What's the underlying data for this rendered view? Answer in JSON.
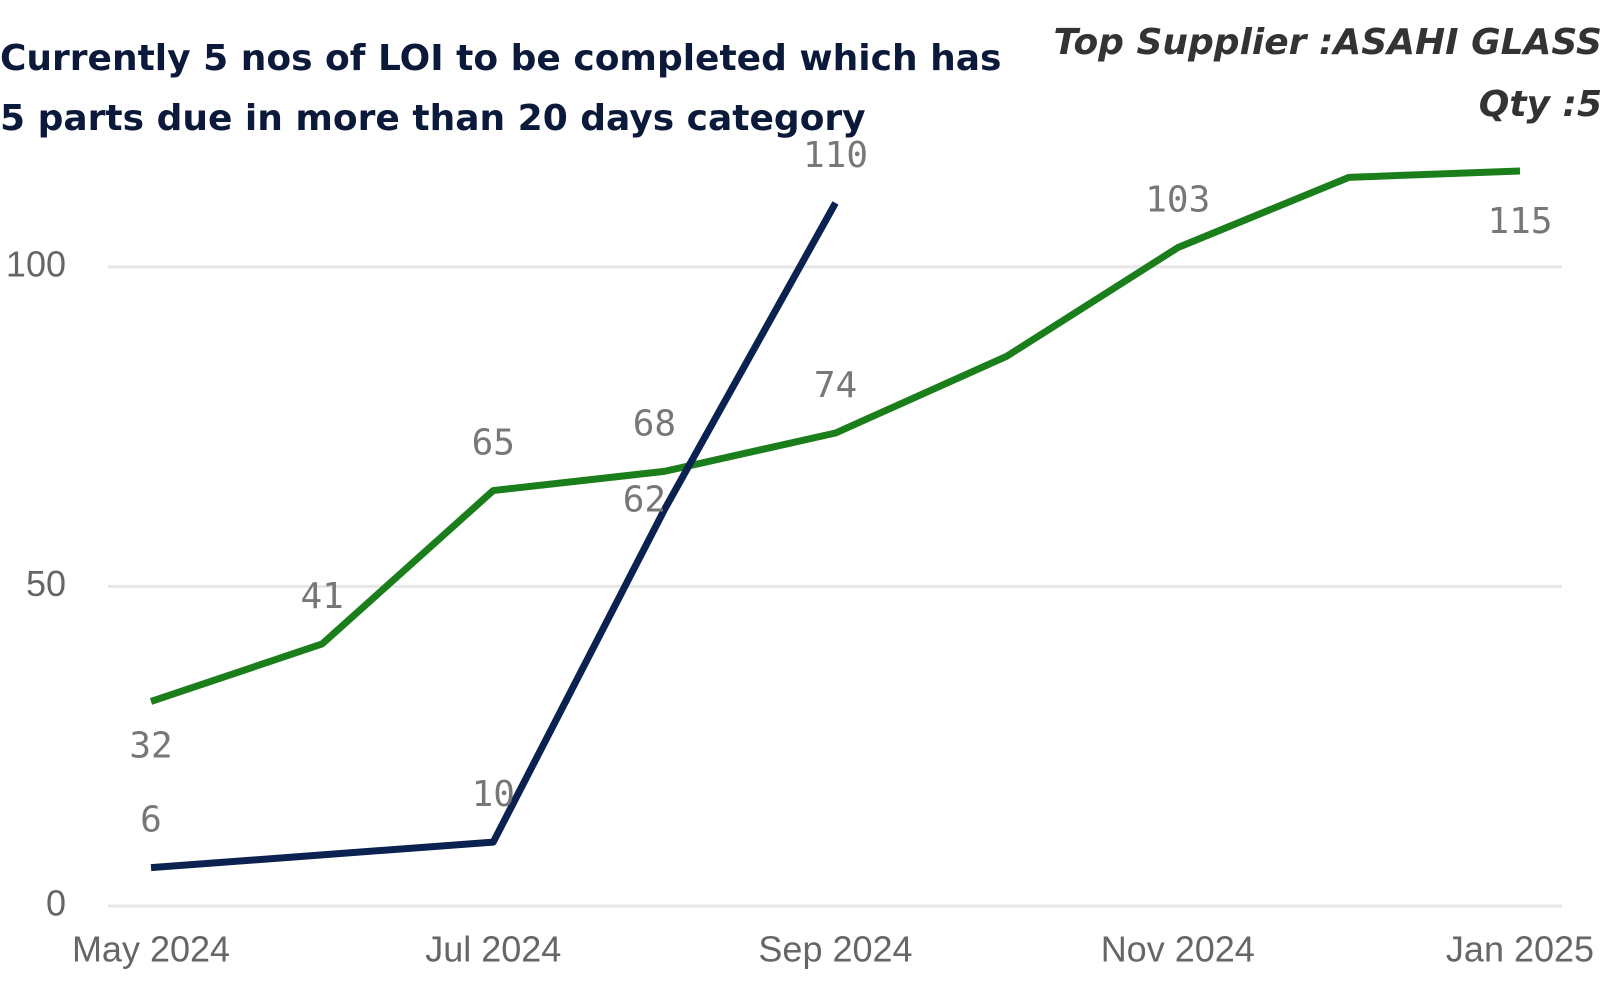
{
  "chart_data": {
    "type": "line",
    "title": [
      "Currently 5 nos of LOI to be completed which has",
      "5 parts due in more than 20 days category"
    ],
    "annotations": [
      "Top Supplier :ASAHI GLASS",
      "Qty :5"
    ],
    "categories": [
      "May 2024",
      null,
      "Jul 2024",
      null,
      "Sep 2024",
      null,
      "Nov 2024",
      null,
      "Jan 2025"
    ],
    "series": [
      {
        "color": "#1a7f1a",
        "values": [
          32,
          41,
          65,
          68,
          74,
          86,
          103,
          114,
          115
        ],
        "value_labels": [
          "32",
          "41",
          "65",
          "68",
          "74",
          null,
          "103",
          null,
          "115"
        ]
      },
      {
        "color": "#0b2150",
        "values": [
          6,
          8,
          10,
          62,
          110,
          null,
          null,
          null,
          null
        ],
        "value_labels": [
          "6",
          null,
          "10",
          "62",
          "110",
          null,
          null,
          null,
          null
        ]
      }
    ],
    "ylim": [
      0,
      120
    ],
    "yticks": [
      0,
      50,
      100
    ],
    "grid": true
  }
}
